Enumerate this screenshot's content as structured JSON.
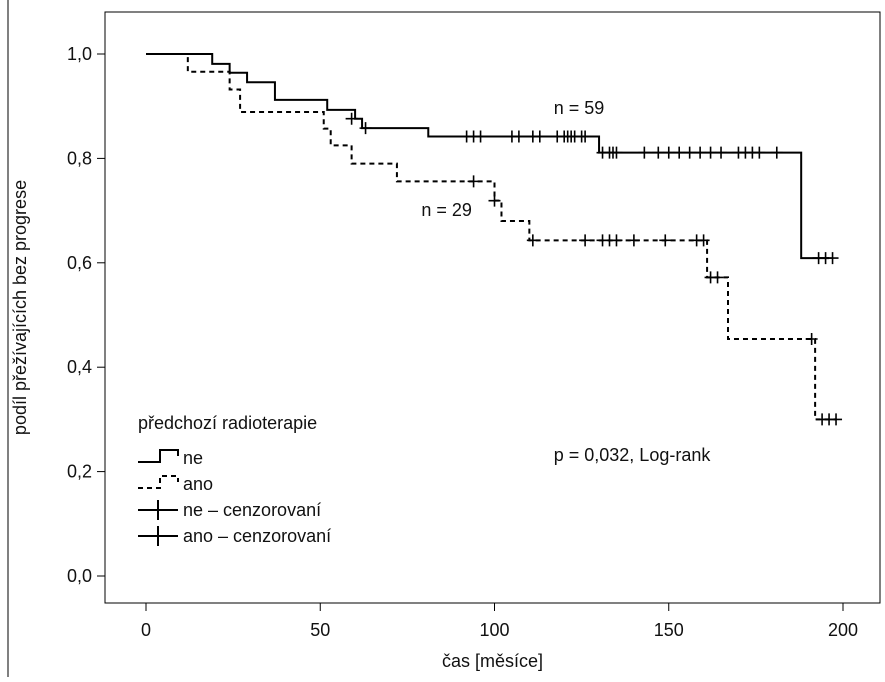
{
  "chart_data": {
    "type": "line",
    "subtype": "kaplan-meier step",
    "xlabel": "čas [měsíce]",
    "ylabel": "podíl přežívajících bez progrese",
    "xlim": [
      0,
      200
    ],
    "ylim": [
      0.0,
      1.0
    ],
    "x_ticks": [
      0,
      50,
      100,
      150,
      200
    ],
    "x_tick_labels": [
      "0",
      "50",
      "100",
      "150",
      "200"
    ],
    "y_ticks": [
      0.0,
      0.2,
      0.4,
      0.6,
      0.8,
      1.0
    ],
    "y_tick_labels": [
      "0,0",
      "0,2",
      "0,4",
      "0,6",
      "0,8",
      "1,0"
    ],
    "grid": false,
    "legend": {
      "title": "předchozí radioterapie",
      "position": "bottom-left",
      "entries": [
        "ne",
        "ano",
        "ne – cenzorovaní",
        "ano – cenzorovaní"
      ]
    },
    "series": [
      {
        "name": "ne",
        "style": "solid",
        "color": "#000000",
        "steps": [
          [
            0,
            1.0
          ],
          [
            19,
            0.981
          ],
          [
            24,
            0.964
          ],
          [
            29,
            0.946
          ],
          [
            37,
            0.912
          ],
          [
            52,
            0.893
          ],
          [
            60,
            0.876
          ],
          [
            62,
            0.858
          ],
          [
            81,
            0.842
          ],
          [
            130,
            0.811
          ],
          [
            188,
            0.609
          ],
          [
            196,
            0.609
          ]
        ],
        "censored_label": "ne – cenzorovaní",
        "censored": [
          [
            59,
            0.876
          ],
          [
            63,
            0.858
          ],
          [
            92,
            0.842
          ],
          [
            94,
            0.842
          ],
          [
            96,
            0.842
          ],
          [
            105,
            0.842
          ],
          [
            107,
            0.842
          ],
          [
            111,
            0.842
          ],
          [
            113,
            0.842
          ],
          [
            118,
            0.842
          ],
          [
            120,
            0.842
          ],
          [
            121,
            0.842
          ],
          [
            122,
            0.842
          ],
          [
            123,
            0.842
          ],
          [
            125,
            0.842
          ],
          [
            126,
            0.842
          ],
          [
            131,
            0.811
          ],
          [
            133,
            0.811
          ],
          [
            134,
            0.811
          ],
          [
            135,
            0.811
          ],
          [
            143,
            0.811
          ],
          [
            147,
            0.811
          ],
          [
            150,
            0.811
          ],
          [
            153,
            0.811
          ],
          [
            156,
            0.811
          ],
          [
            159,
            0.811
          ],
          [
            162,
            0.811
          ],
          [
            165,
            0.811
          ],
          [
            170,
            0.811
          ],
          [
            172,
            0.811
          ],
          [
            174,
            0.811
          ],
          [
            176,
            0.811
          ],
          [
            181,
            0.811
          ],
          [
            193,
            0.609
          ],
          [
            195,
            0.609
          ],
          [
            197,
            0.609
          ]
        ]
      },
      {
        "name": "ano",
        "style": "dashed",
        "color": "#000000",
        "steps": [
          [
            0,
            1.0
          ],
          [
            12,
            0.966
          ],
          [
            24,
            0.932
          ],
          [
            27,
            0.889
          ],
          [
            51,
            0.857
          ],
          [
            53,
            0.825
          ],
          [
            59,
            0.79
          ],
          [
            72,
            0.756
          ],
          [
            100,
            0.719
          ],
          [
            102,
            0.68
          ],
          [
            110,
            0.643
          ],
          [
            161,
            0.572
          ],
          [
            167,
            0.454
          ],
          [
            192,
            0.3
          ],
          [
            198,
            0.3
          ]
        ],
        "censored_label": "ano – cenzorovaní",
        "censored": [
          [
            94,
            0.756
          ],
          [
            100,
            0.719
          ],
          [
            111,
            0.643
          ],
          [
            126,
            0.643
          ],
          [
            131,
            0.643
          ],
          [
            133,
            0.643
          ],
          [
            135,
            0.643
          ],
          [
            140,
            0.643
          ],
          [
            149,
            0.643
          ],
          [
            158,
            0.643
          ],
          [
            160,
            0.643
          ],
          [
            162,
            0.572
          ],
          [
            164,
            0.572
          ],
          [
            191,
            0.454
          ],
          [
            194,
            0.3
          ],
          [
            196,
            0.3
          ],
          [
            198,
            0.3
          ]
        ]
      }
    ],
    "annotations": [
      {
        "text": "n = 59",
        "x": 117,
        "y": 0.885
      },
      {
        "text": "n = 29",
        "x": 79,
        "y": 0.69
      },
      {
        "text": "p = 0,032, Log-rank",
        "x": 117,
        "y": 0.22
      }
    ]
  }
}
